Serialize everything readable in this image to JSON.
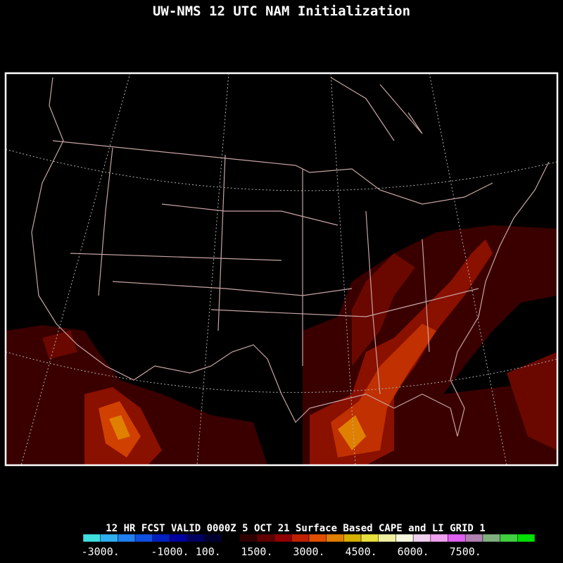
{
  "header": {
    "title": "UW-NMS 12 UTC NAM Initialization"
  },
  "footer": {
    "caption": "12 HR FCST VALID 0000Z  5 OCT 21 Surface Based CAPE and LI GRID 1",
    "colorbar": {
      "colors": [
        "#40e0e0",
        "#30b0f0",
        "#2080f0",
        "#1050e0",
        "#0020c0",
        "#0000a0",
        "#000060",
        "#000030",
        "#000000",
        "#300000",
        "#600000",
        "#900000",
        "#c02000",
        "#e05000",
        "#e08000",
        "#d8b000",
        "#e8e040",
        "#f0f0a0",
        "#f8f8e0",
        "#f0d0f0",
        "#f0a0f0",
        "#e060f0",
        "#b080b0",
        "#80b080",
        "#40d040",
        "#00e000"
      ],
      "ticks": [
        {
          "value": -3000,
          "label": "-3000."
        },
        {
          "value": -1000,
          "label": "-1000."
        },
        {
          "value": 100,
          "label": "100."
        },
        {
          "value": 1500,
          "label": "1500."
        },
        {
          "value": 3000,
          "label": "3000."
        },
        {
          "value": 4500,
          "label": "4500."
        },
        {
          "value": 6000,
          "label": "6000."
        },
        {
          "value": 7500,
          "label": "7500."
        }
      ]
    }
  }
}
